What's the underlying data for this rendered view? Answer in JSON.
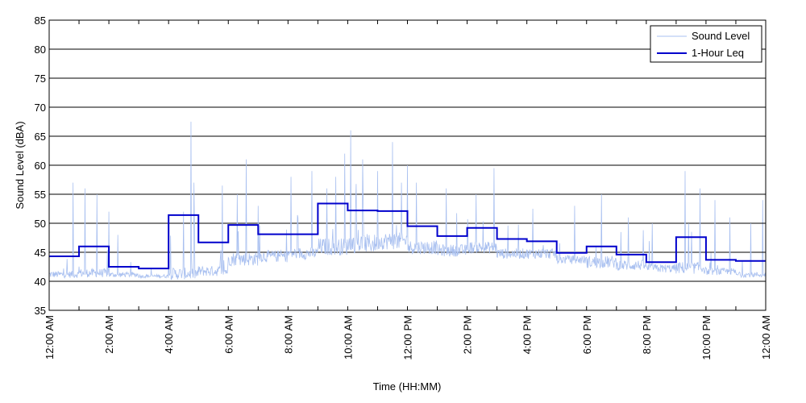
{
  "chart_data": {
    "type": "line",
    "title": "",
    "xlabel": "Time (HH:MM)",
    "ylabel": "Sound Level (dBA)",
    "ylim": [
      35,
      85
    ],
    "yticks": [
      "35",
      "40",
      "45",
      "50",
      "55",
      "60",
      "65",
      "70",
      "75",
      "80",
      "85"
    ],
    "xlim_hours": [
      0,
      24
    ],
    "xticks": [
      "12:00 AM",
      "2:00 AM",
      "4:00 AM",
      "6:00 AM",
      "8:00 AM",
      "10:00 AM",
      "12:00 PM",
      "2:00 PM",
      "4:00 PM",
      "6:00 PM",
      "8:00 PM",
      "10:00 PM",
      "12:00 AM"
    ],
    "grid": "horizontal",
    "legend_position": "top-right",
    "colors": {
      "sound_level": "#a9c0f0",
      "leq": "#0000cc",
      "grid": "#000000"
    },
    "series": [
      {
        "name": "Sound Level",
        "hourly_baseline": [
          41.0,
          41.2,
          41.0,
          40.8,
          41.0,
          41.5,
          43.5,
          44.0,
          44.5,
          45.5,
          46.0,
          46.5,
          45.5,
          45.0,
          45.5,
          44.5,
          44.5,
          43.5,
          43.0,
          42.5,
          42.0,
          42.0,
          41.5,
          41.0
        ],
        "hourly_spread": [
          2.0,
          2.5,
          1.5,
          1.0,
          3.5,
          3.0,
          4.0,
          3.5,
          3.5,
          5.0,
          5.5,
          5.0,
          4.0,
          3.5,
          3.5,
          3.0,
          3.0,
          2.5,
          3.5,
          3.0,
          2.5,
          3.5,
          2.0,
          1.5
        ],
        "peaks": [
          {
            "x": 0.8,
            "y": 57.0
          },
          {
            "x": 1.2,
            "y": 56.0
          },
          {
            "x": 1.6,
            "y": 55.0
          },
          {
            "x": 2.0,
            "y": 52.0
          },
          {
            "x": 2.3,
            "y": 48.0
          },
          {
            "x": 4.5,
            "y": 52.0
          },
          {
            "x": 4.75,
            "y": 67.5
          },
          {
            "x": 4.85,
            "y": 57.0
          },
          {
            "x": 5.8,
            "y": 56.5
          },
          {
            "x": 6.3,
            "y": 55.0
          },
          {
            "x": 6.6,
            "y": 61.0
          },
          {
            "x": 7.0,
            "y": 53.0
          },
          {
            "x": 8.1,
            "y": 58.0
          },
          {
            "x": 8.8,
            "y": 59.0
          },
          {
            "x": 9.3,
            "y": 56.0
          },
          {
            "x": 9.6,
            "y": 58.0
          },
          {
            "x": 9.9,
            "y": 62.0
          },
          {
            "x": 10.1,
            "y": 66.0
          },
          {
            "x": 10.5,
            "y": 61.0
          },
          {
            "x": 11.0,
            "y": 59.0
          },
          {
            "x": 11.5,
            "y": 64.0
          },
          {
            "x": 11.8,
            "y": 57.0
          },
          {
            "x": 12.0,
            "y": 60.0
          },
          {
            "x": 12.3,
            "y": 57.0
          },
          {
            "x": 13.3,
            "y": 56.0
          },
          {
            "x": 14.3,
            "y": 55.0
          },
          {
            "x": 14.9,
            "y": 59.5
          },
          {
            "x": 16.2,
            "y": 52.5
          },
          {
            "x": 17.6,
            "y": 53.0
          },
          {
            "x": 18.5,
            "y": 55.0
          },
          {
            "x": 19.4,
            "y": 51.0
          },
          {
            "x": 20.2,
            "y": 50.0
          },
          {
            "x": 21.3,
            "y": 59.0
          },
          {
            "x": 21.8,
            "y": 56.0
          },
          {
            "x": 22.3,
            "y": 54.0
          },
          {
            "x": 22.8,
            "y": 51.0
          },
          {
            "x": 23.5,
            "y": 50.0
          },
          {
            "x": 23.9,
            "y": 54.0
          }
        ]
      },
      {
        "name": "1-Hour Leq",
        "values": [
          44.3,
          46.0,
          42.5,
          42.2,
          51.4,
          46.7,
          49.7,
          48.1,
          48.1,
          53.4,
          52.2,
          52.1,
          49.5,
          47.8,
          49.2,
          47.3,
          46.9,
          44.9,
          46.0,
          44.6,
          43.3,
          47.6,
          43.7,
          43.5
        ]
      }
    ]
  }
}
